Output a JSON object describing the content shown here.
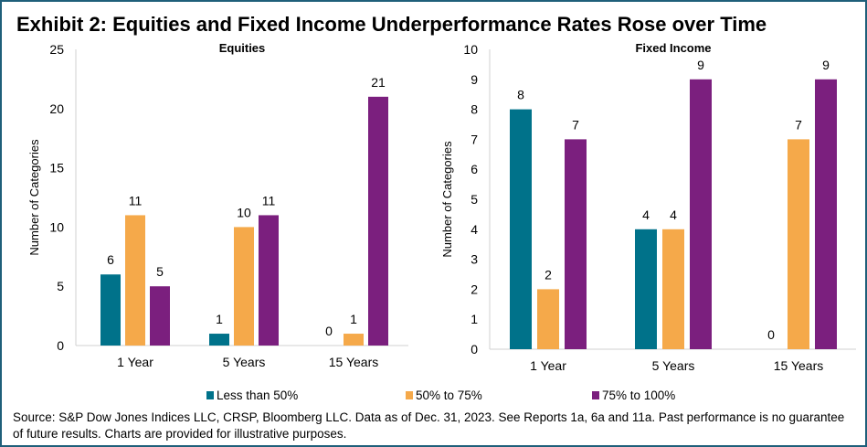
{
  "title": "Exhibit 2: Equities and Fixed Income Underperformance Rates Rose over Time",
  "source": "Source: S&P Dow Jones Indices LLC, CRSP, Bloomberg LLC.  Data as of Dec. 31, 2023.  See Reports 1a, 6a and 11a.  Past performance is no guarantee of future results.  Charts are provided for illustrative purposes.",
  "legend": [
    {
      "label": "Less than 50%",
      "color": "#00728a"
    },
    {
      "label": "50% to 75%",
      "color": "#f5a94a"
    },
    {
      "label": "75% to 100%",
      "color": "#7b1f7e"
    }
  ],
  "chart_data": [
    {
      "type": "bar",
      "title": "Equities",
      "ylabel": "Number of Categories",
      "xlabel": "",
      "categories": [
        "1 Year",
        "5 Years",
        "15 Years"
      ],
      "ylim": [
        0,
        25
      ],
      "yticks": [
        0,
        5,
        10,
        15,
        20,
        25
      ],
      "grid": false,
      "legend": "bottom",
      "series": [
        {
          "name": "Less than 50%",
          "values": [
            6,
            1,
            0
          ]
        },
        {
          "name": "50% to 75%",
          "values": [
            11,
            10,
            1
          ]
        },
        {
          "name": "75% to 100%",
          "values": [
            5,
            11,
            21
          ]
        }
      ]
    },
    {
      "type": "bar",
      "title": "Fixed Income",
      "ylabel": "Number of Categories",
      "xlabel": "",
      "categories": [
        "1 Year",
        "5 Years",
        "15 Years"
      ],
      "ylim": [
        0,
        10
      ],
      "yticks": [
        0,
        1,
        2,
        3,
        4,
        5,
        6,
        7,
        8,
        9,
        10
      ],
      "grid": false,
      "legend": "bottom",
      "series": [
        {
          "name": "Less than 50%",
          "values": [
            8,
            4,
            0
          ]
        },
        {
          "name": "50% to 75%",
          "values": [
            2,
            4,
            7
          ]
        },
        {
          "name": "75% to 100%",
          "values": [
            7,
            9,
            9
          ]
        }
      ]
    }
  ]
}
